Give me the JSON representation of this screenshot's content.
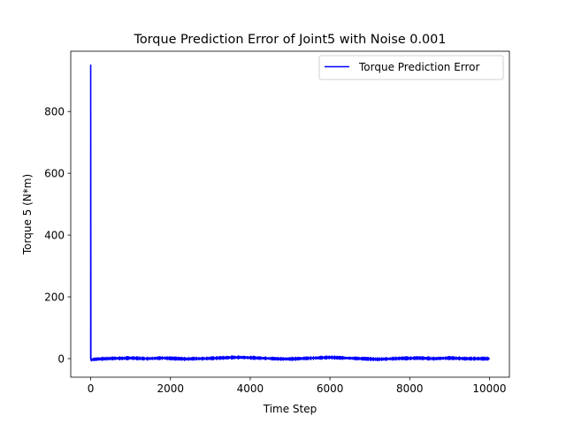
{
  "chart_data": {
    "type": "line",
    "title": "Torque Prediction Error of Joint5 with Noise 0.001",
    "xlabel": "Time Step",
    "ylabel": "Torque 5 (N*m)",
    "xlim": [
      -500,
      10500
    ],
    "ylim": [
      -60,
      995
    ],
    "xticks": [
      0,
      2000,
      4000,
      6000,
      8000,
      10000
    ],
    "yticks": [
      0,
      200,
      400,
      600,
      800
    ],
    "grid": false,
    "legend": {
      "placement": "top-right",
      "entries": [
        "Torque Prediction Error"
      ]
    },
    "series": [
      {
        "name": "Torque Prediction Error",
        "color": "#0000ff",
        "x": [
          0,
          0,
          5,
          20,
          50,
          100,
          200,
          400,
          600,
          800,
          1000,
          1200,
          1400,
          1600,
          1800,
          2000,
          2200,
          2400,
          2600,
          2800,
          3000,
          3200,
          3400,
          3600,
          3800,
          4000,
          4200,
          4400,
          4600,
          4800,
          5000,
          5200,
          5400,
          5600,
          5800,
          6000,
          6200,
          6400,
          6600,
          6800,
          7000,
          7200,
          7400,
          7600,
          7800,
          8000,
          8200,
          8400,
          8600,
          8800,
          9000,
          9200,
          9400,
          9600,
          9800,
          10000
        ],
        "y": [
          0,
          950,
          -5,
          -4,
          -3,
          -2,
          -1,
          0,
          1,
          1,
          2,
          1,
          0,
          1,
          2,
          1,
          0,
          -1,
          0,
          0,
          1,
          2,
          3,
          4,
          4,
          3,
          2,
          1,
          0,
          -1,
          -1,
          0,
          1,
          2,
          3,
          4,
          3,
          2,
          1,
          0,
          -1,
          -2,
          -1,
          0,
          1,
          1,
          2,
          1,
          0,
          1,
          2,
          1,
          0,
          0,
          0,
          0
        ]
      }
    ]
  }
}
